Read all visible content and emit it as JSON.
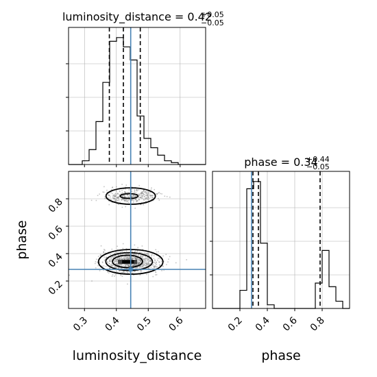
{
  "chart_data": {
    "type": "corner",
    "parameters": [
      "luminosity_distance",
      "phase"
    ],
    "truths": {
      "luminosity_distance": 0.445,
      "phase": 0.285
    },
    "panels": {
      "lum_hist": {
        "type": "histogram",
        "title_name": "luminosity_distance = 0.42",
        "title_sup": "+0.05",
        "title_sub": "−0.05",
        "xlim": [
          0.25,
          0.68
        ],
        "bin_edges": [
          0.25,
          0.2715,
          0.293,
          0.3145,
          0.336,
          0.3575,
          0.379,
          0.4005,
          0.422,
          0.4435,
          0.465,
          0.4865,
          0.508,
          0.5295,
          0.551,
          0.5725,
          0.594,
          0.6155,
          0.637,
          0.6585,
          0.68
        ],
        "counts": [
          0,
          0,
          2,
          8,
          23,
          44,
          66,
          68,
          63,
          56,
          26,
          14,
          9,
          5,
          2,
          1,
          0,
          0,
          0,
          0
        ],
        "quantiles": [
          0.378,
          0.422,
          0.475
        ],
        "truth": 0.445,
        "xticks": [
          0.3,
          0.4,
          0.5,
          0.6
        ]
      },
      "phase_hist": {
        "type": "histogram",
        "title_name": "phase = 0.34",
        "title_sup": "+0.44",
        "title_sub": "−0.05",
        "xlim": [
          0.0,
          1.0
        ],
        "bin_edges": [
          0.0,
          0.05,
          0.1,
          0.15,
          0.2,
          0.25,
          0.3,
          0.35,
          0.4,
          0.45,
          0.5,
          0.55,
          0.6,
          0.65,
          0.7,
          0.75,
          0.8,
          0.85,
          0.9,
          0.95,
          1.0
        ],
        "counts": [
          0,
          0,
          0,
          0,
          5,
          33,
          35,
          18,
          1,
          0,
          0,
          0,
          0,
          0,
          0,
          7,
          16,
          6,
          2,
          0
        ],
        "quantiles": [
          0.295,
          0.335,
          0.785
        ],
        "truth": 0.285,
        "xticks": [
          0.2,
          0.4,
          0.6,
          0.8
        ],
        "xtick_labels": [
          "0.2",
          "0.4",
          "0.6",
          "0.8"
        ]
      },
      "joint": {
        "type": "2d-density",
        "xlim": [
          0.25,
          0.68
        ],
        "ylim": [
          0.0,
          1.0
        ],
        "xticks": [
          0.3,
          0.4,
          0.5,
          0.6
        ],
        "xtick_labels": [
          "0.3",
          "0.4",
          "0.5",
          "0.6"
        ],
        "yticks": [
          0.2,
          0.4,
          0.6,
          0.8
        ],
        "ytick_labels": [
          "0.2",
          "0.4",
          "0.6",
          "0.8"
        ],
        "xlabel": "luminosity_distance",
        "ylabel": "phase",
        "clusters": [
          {
            "center": [
              0.445,
              0.34
            ],
            "spread": [
              0.045,
              0.04
            ],
            "n": 900
          },
          {
            "center": [
              0.445,
              0.82
            ],
            "spread": [
              0.042,
              0.028
            ],
            "n": 380
          }
        ],
        "truth": [
          0.445,
          0.285
        ]
      },
      "phase_xlabel": "phase"
    },
    "grid": true,
    "colors": {
      "hist": "#000000",
      "truth": "#4682b4",
      "quantile": "#000000",
      "grid": "#b0b0b0",
      "scatter": "#7f7f7f"
    }
  }
}
